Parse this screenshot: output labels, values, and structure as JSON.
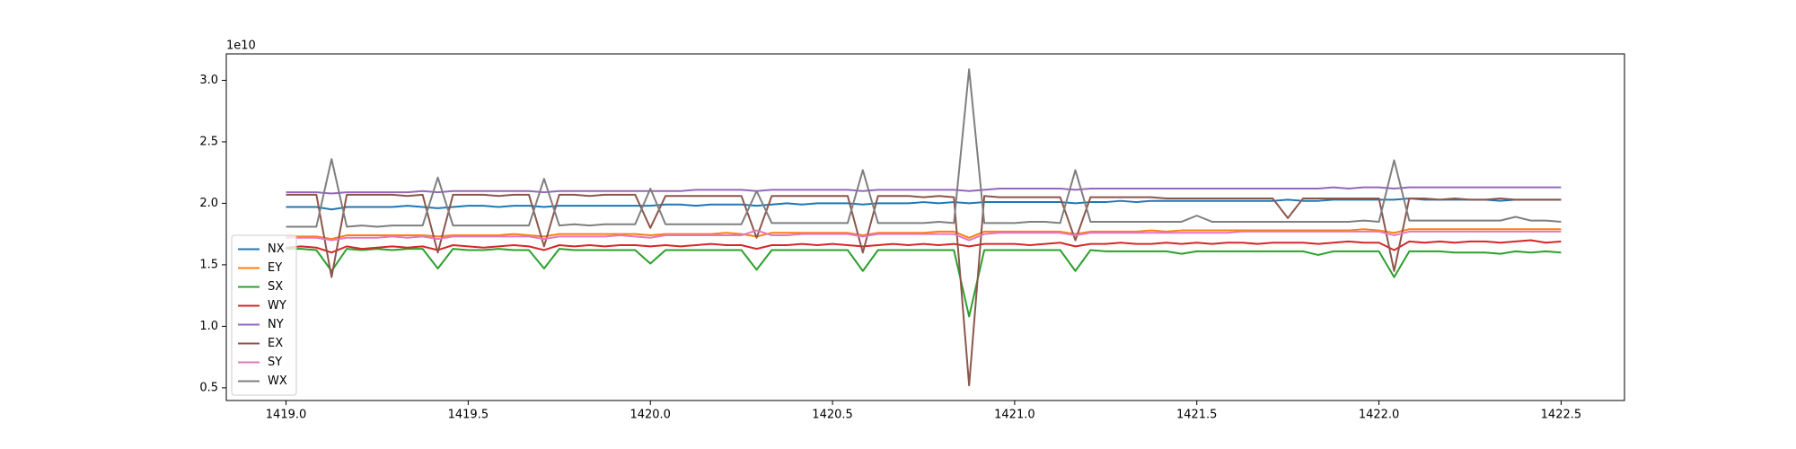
{
  "chart_data": {
    "type": "line",
    "offset_label": "1e10",
    "x": [
      1419.0,
      1419.0417,
      1419.0833,
      1419.125,
      1419.1667,
      1419.2083,
      1419.25,
      1419.2917,
      1419.3333,
      1419.375,
      1419.4167,
      1419.4583,
      1419.5,
      1419.5417,
      1419.5833,
      1419.625,
      1419.6667,
      1419.7083,
      1419.75,
      1419.7917,
      1419.8333,
      1419.875,
      1419.9167,
      1419.9583,
      1420.0,
      1420.0417,
      1420.0833,
      1420.125,
      1420.1667,
      1420.2083,
      1420.25,
      1420.2917,
      1420.3333,
      1420.375,
      1420.4167,
      1420.4583,
      1420.5,
      1420.5417,
      1420.5833,
      1420.625,
      1420.6667,
      1420.7083,
      1420.75,
      1420.7917,
      1420.8333,
      1420.875,
      1420.9167,
      1420.9583,
      1421.0,
      1421.0417,
      1421.0833,
      1421.125,
      1421.1667,
      1421.2083,
      1421.25,
      1421.2917,
      1421.3333,
      1421.375,
      1421.4167,
      1421.4583,
      1421.5,
      1421.5417,
      1421.5833,
      1421.625,
      1421.6667,
      1421.7083,
      1421.75,
      1421.7917,
      1421.8333,
      1421.875,
      1421.9167,
      1421.9583,
      1422.0,
      1422.0417,
      1422.0833,
      1422.125,
      1422.1667,
      1422.2083,
      1422.25,
      1422.2917,
      1422.3333,
      1422.375,
      1422.4167,
      1422.4583,
      1422.5
    ],
    "series": [
      {
        "name": "NX",
        "color": "#1f77b4",
        "values": [
          1.97,
          1.97,
          1.97,
          1.95,
          1.97,
          1.97,
          1.97,
          1.97,
          1.98,
          1.97,
          1.96,
          1.97,
          1.98,
          1.98,
          1.97,
          1.98,
          1.98,
          1.97,
          1.98,
          1.98,
          1.98,
          1.98,
          1.98,
          1.98,
          1.98,
          1.99,
          1.99,
          1.98,
          1.99,
          1.99,
          1.99,
          1.98,
          1.99,
          2.0,
          1.99,
          2.0,
          2.0,
          2.0,
          1.99,
          2.0,
          2.0,
          2.0,
          2.01,
          2.0,
          2.01,
          2.0,
          2.01,
          2.01,
          2.01,
          2.01,
          2.01,
          2.01,
          2.0,
          2.01,
          2.01,
          2.02,
          2.01,
          2.02,
          2.02,
          2.02,
          2.02,
          2.02,
          2.02,
          2.02,
          2.02,
          2.02,
          2.03,
          2.02,
          2.02,
          2.03,
          2.03,
          2.03,
          2.03,
          2.03,
          2.04,
          2.03,
          2.03,
          2.03,
          2.03,
          2.03,
          2.02,
          2.03,
          2.03,
          2.03,
          2.03
        ]
      },
      {
        "name": "EY",
        "color": "#ff7f0e",
        "values": [
          1.73,
          1.73,
          1.73,
          1.71,
          1.74,
          1.74,
          1.74,
          1.74,
          1.74,
          1.74,
          1.73,
          1.74,
          1.74,
          1.74,
          1.74,
          1.75,
          1.74,
          1.73,
          1.75,
          1.75,
          1.75,
          1.75,
          1.75,
          1.75,
          1.74,
          1.75,
          1.75,
          1.75,
          1.75,
          1.76,
          1.75,
          1.73,
          1.76,
          1.76,
          1.76,
          1.76,
          1.76,
          1.76,
          1.74,
          1.76,
          1.76,
          1.76,
          1.76,
          1.77,
          1.77,
          1.72,
          1.77,
          1.77,
          1.77,
          1.77,
          1.77,
          1.77,
          1.75,
          1.77,
          1.77,
          1.77,
          1.77,
          1.78,
          1.77,
          1.78,
          1.78,
          1.78,
          1.78,
          1.78,
          1.78,
          1.78,
          1.78,
          1.78,
          1.78,
          1.78,
          1.78,
          1.79,
          1.78,
          1.76,
          1.79,
          1.79,
          1.79,
          1.79,
          1.79,
          1.79,
          1.79,
          1.79,
          1.79,
          1.79,
          1.79
        ]
      },
      {
        "name": "SX",
        "color": "#2ca02c",
        "values": [
          1.63,
          1.63,
          1.62,
          1.45,
          1.63,
          1.62,
          1.63,
          1.62,
          1.63,
          1.63,
          1.47,
          1.63,
          1.62,
          1.62,
          1.63,
          1.62,
          1.62,
          1.47,
          1.63,
          1.62,
          1.62,
          1.62,
          1.62,
          1.62,
          1.51,
          1.62,
          1.62,
          1.62,
          1.62,
          1.62,
          1.62,
          1.46,
          1.62,
          1.62,
          1.62,
          1.62,
          1.62,
          1.62,
          1.45,
          1.62,
          1.62,
          1.62,
          1.62,
          1.62,
          1.62,
          1.08,
          1.62,
          1.62,
          1.62,
          1.62,
          1.62,
          1.62,
          1.45,
          1.62,
          1.61,
          1.61,
          1.61,
          1.61,
          1.61,
          1.59,
          1.61,
          1.61,
          1.61,
          1.61,
          1.61,
          1.61,
          1.61,
          1.61,
          1.58,
          1.61,
          1.61,
          1.61,
          1.61,
          1.4,
          1.61,
          1.61,
          1.61,
          1.6,
          1.6,
          1.6,
          1.59,
          1.61,
          1.6,
          1.61,
          1.6
        ]
      },
      {
        "name": "WY",
        "color": "#d62728",
        "values": [
          1.64,
          1.65,
          1.64,
          1.6,
          1.65,
          1.63,
          1.64,
          1.65,
          1.64,
          1.65,
          1.62,
          1.66,
          1.65,
          1.64,
          1.65,
          1.66,
          1.65,
          1.62,
          1.66,
          1.65,
          1.66,
          1.65,
          1.66,
          1.66,
          1.65,
          1.66,
          1.65,
          1.66,
          1.67,
          1.66,
          1.66,
          1.63,
          1.66,
          1.66,
          1.67,
          1.66,
          1.67,
          1.66,
          1.65,
          1.66,
          1.67,
          1.66,
          1.67,
          1.66,
          1.67,
          1.65,
          1.67,
          1.67,
          1.67,
          1.66,
          1.67,
          1.68,
          1.65,
          1.67,
          1.67,
          1.68,
          1.67,
          1.67,
          1.68,
          1.67,
          1.68,
          1.67,
          1.68,
          1.68,
          1.67,
          1.68,
          1.68,
          1.68,
          1.67,
          1.68,
          1.69,
          1.68,
          1.68,
          1.62,
          1.69,
          1.68,
          1.69,
          1.68,
          1.69,
          1.69,
          1.68,
          1.69,
          1.7,
          1.68,
          1.69
        ]
      },
      {
        "name": "NY",
        "color": "#9467bd",
        "values": [
          2.09,
          2.09,
          2.09,
          2.08,
          2.09,
          2.09,
          2.09,
          2.09,
          2.09,
          2.1,
          2.09,
          2.1,
          2.1,
          2.1,
          2.1,
          2.1,
          2.1,
          2.09,
          2.1,
          2.1,
          2.1,
          2.1,
          2.1,
          2.1,
          2.1,
          2.1,
          2.1,
          2.11,
          2.11,
          2.11,
          2.11,
          2.1,
          2.11,
          2.11,
          2.11,
          2.11,
          2.11,
          2.11,
          2.1,
          2.11,
          2.11,
          2.11,
          2.11,
          2.11,
          2.11,
          2.1,
          2.11,
          2.12,
          2.12,
          2.12,
          2.12,
          2.12,
          2.11,
          2.12,
          2.12,
          2.12,
          2.12,
          2.12,
          2.12,
          2.12,
          2.12,
          2.12,
          2.12,
          2.12,
          2.12,
          2.12,
          2.12,
          2.12,
          2.12,
          2.13,
          2.12,
          2.13,
          2.13,
          2.12,
          2.13,
          2.13,
          2.13,
          2.13,
          2.13,
          2.13,
          2.13,
          2.13,
          2.13,
          2.13,
          2.13
        ]
      },
      {
        "name": "EX",
        "color": "#8c564b",
        "values": [
          2.07,
          2.07,
          2.07,
          1.4,
          2.07,
          2.07,
          2.07,
          2.07,
          2.06,
          2.07,
          1.6,
          2.07,
          2.07,
          2.07,
          2.06,
          2.07,
          2.07,
          1.65,
          2.07,
          2.07,
          2.06,
          2.07,
          2.07,
          2.07,
          1.8,
          2.06,
          2.06,
          2.06,
          2.06,
          2.06,
          2.06,
          1.72,
          2.06,
          2.06,
          2.06,
          2.06,
          2.06,
          2.06,
          1.6,
          2.06,
          2.06,
          2.06,
          2.05,
          2.06,
          2.05,
          0.52,
          2.06,
          2.05,
          2.05,
          2.05,
          2.05,
          2.05,
          1.7,
          2.05,
          2.05,
          2.05,
          2.05,
          2.05,
          2.04,
          2.04,
          2.04,
          2.04,
          2.04,
          2.04,
          2.04,
          2.04,
          1.88,
          2.04,
          2.04,
          2.04,
          2.04,
          2.04,
          2.04,
          1.45,
          2.04,
          2.04,
          2.03,
          2.04,
          2.03,
          2.03,
          2.04,
          2.03,
          2.03,
          2.03,
          2.03
        ]
      },
      {
        "name": "SY",
        "color": "#e377c2",
        "values": [
          1.72,
          1.72,
          1.72,
          1.7,
          1.72,
          1.72,
          1.72,
          1.73,
          1.72,
          1.73,
          1.71,
          1.73,
          1.73,
          1.73,
          1.73,
          1.73,
          1.73,
          1.71,
          1.73,
          1.73,
          1.73,
          1.73,
          1.74,
          1.73,
          1.72,
          1.74,
          1.74,
          1.74,
          1.74,
          1.74,
          1.74,
          1.78,
          1.74,
          1.74,
          1.75,
          1.75,
          1.75,
          1.75,
          1.73,
          1.75,
          1.75,
          1.75,
          1.75,
          1.75,
          1.75,
          1.7,
          1.75,
          1.76,
          1.76,
          1.76,
          1.76,
          1.76,
          1.74,
          1.76,
          1.76,
          1.76,
          1.76,
          1.76,
          1.76,
          1.76,
          1.76,
          1.76,
          1.76,
          1.77,
          1.77,
          1.77,
          1.77,
          1.77,
          1.77,
          1.77,
          1.77,
          1.77,
          1.77,
          1.74,
          1.77,
          1.77,
          1.77,
          1.77,
          1.77,
          1.77,
          1.77,
          1.77,
          1.77,
          1.77,
          1.77
        ]
      },
      {
        "name": "WX",
        "color": "#7f7f7f",
        "values": [
          1.81,
          1.81,
          1.81,
          2.36,
          1.81,
          1.82,
          1.81,
          1.82,
          1.82,
          1.82,
          2.21,
          1.82,
          1.82,
          1.82,
          1.82,
          1.82,
          1.82,
          2.2,
          1.82,
          1.83,
          1.82,
          1.83,
          1.83,
          1.83,
          2.12,
          1.83,
          1.83,
          1.83,
          1.83,
          1.83,
          1.83,
          2.1,
          1.84,
          1.84,
          1.84,
          1.84,
          1.84,
          1.84,
          2.27,
          1.84,
          1.84,
          1.84,
          1.84,
          1.85,
          1.84,
          3.09,
          1.84,
          1.84,
          1.84,
          1.85,
          1.85,
          1.84,
          2.27,
          1.85,
          1.85,
          1.85,
          1.85,
          1.85,
          1.85,
          1.85,
          1.9,
          1.85,
          1.85,
          1.85,
          1.85,
          1.85,
          1.85,
          1.85,
          1.85,
          1.85,
          1.85,
          1.86,
          1.85,
          2.35,
          1.86,
          1.86,
          1.86,
          1.86,
          1.86,
          1.86,
          1.86,
          1.89,
          1.86,
          1.86,
          1.85
        ]
      }
    ],
    "xlim": [
      1418.836,
      1422.674
    ],
    "xticks": [
      {
        "value": 1419,
        "label": "1419.0"
      },
      {
        "value": 1419.5,
        "label": "1419.5"
      },
      {
        "value": 1420,
        "label": "1420.0"
      },
      {
        "value": 1420.5,
        "label": "1420.5"
      },
      {
        "value": 1421,
        "label": "1421.0"
      },
      {
        "value": 1421.5,
        "label": "1421.5"
      },
      {
        "value": 1422,
        "label": "1422.0"
      },
      {
        "value": 1422.5,
        "label": "1422.5"
      }
    ],
    "ylim": [
      0.397,
      3.215
    ],
    "yticks": [
      {
        "value": 0.5,
        "label": "0.5"
      },
      {
        "value": 1,
        "label": "1.0"
      },
      {
        "value": 1.5,
        "label": "1.5"
      },
      {
        "value": 2,
        "label": "2.0"
      },
      {
        "value": 2.5,
        "label": "2.5"
      },
      {
        "value": 3,
        "label": "3.0"
      }
    ],
    "grid": false,
    "legend": "lower left"
  }
}
